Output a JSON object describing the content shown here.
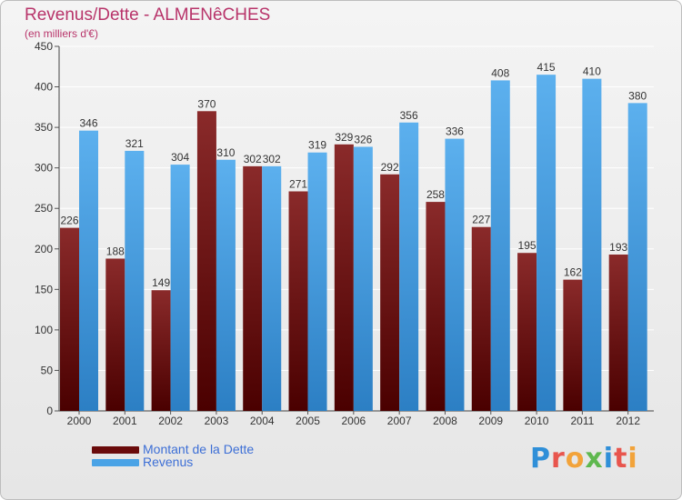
{
  "header": {
    "title": "Revenus/Dette - ALMENêCHES",
    "subtitle": "(en milliers d'€)"
  },
  "legend": {
    "items": [
      {
        "label": "Montant de la Dette",
        "color": "#7a1010"
      },
      {
        "label": "Revenus",
        "color": "#4aa3e6"
      }
    ]
  },
  "logo": {
    "text": "Proxiti",
    "colors": [
      "#2f8fd8",
      "#e8554d",
      "#f2a33a",
      "#5fb84f",
      "#2f8fd8",
      "#e8554d",
      "#f2a33a"
    ]
  },
  "chart_data": {
    "type": "bar",
    "categories": [
      "2000",
      "2001",
      "2002",
      "2003",
      "2004",
      "2005",
      "2006",
      "2007",
      "2008",
      "2009",
      "2010",
      "2011",
      "2012"
    ],
    "series": [
      {
        "name": "Montant de la Dette",
        "color": "#7a1010",
        "values": [
          226,
          188,
          149,
          370,
          302,
          271,
          329,
          292,
          258,
          227,
          195,
          162,
          193
        ]
      },
      {
        "name": "Revenus",
        "color": "#4aa3e6",
        "values": [
          346,
          321,
          304,
          310,
          302,
          319,
          326,
          356,
          336,
          408,
          415,
          410,
          380
        ]
      }
    ],
    "yticks": [
      0,
      50,
      100,
      150,
      200,
      250,
      300,
      350,
      400,
      450
    ],
    "ylim": [
      0,
      450
    ],
    "grid": true,
    "title": "Revenus/Dette - ALMENêCHES",
    "ylabel": "(en milliers d'€)"
  }
}
